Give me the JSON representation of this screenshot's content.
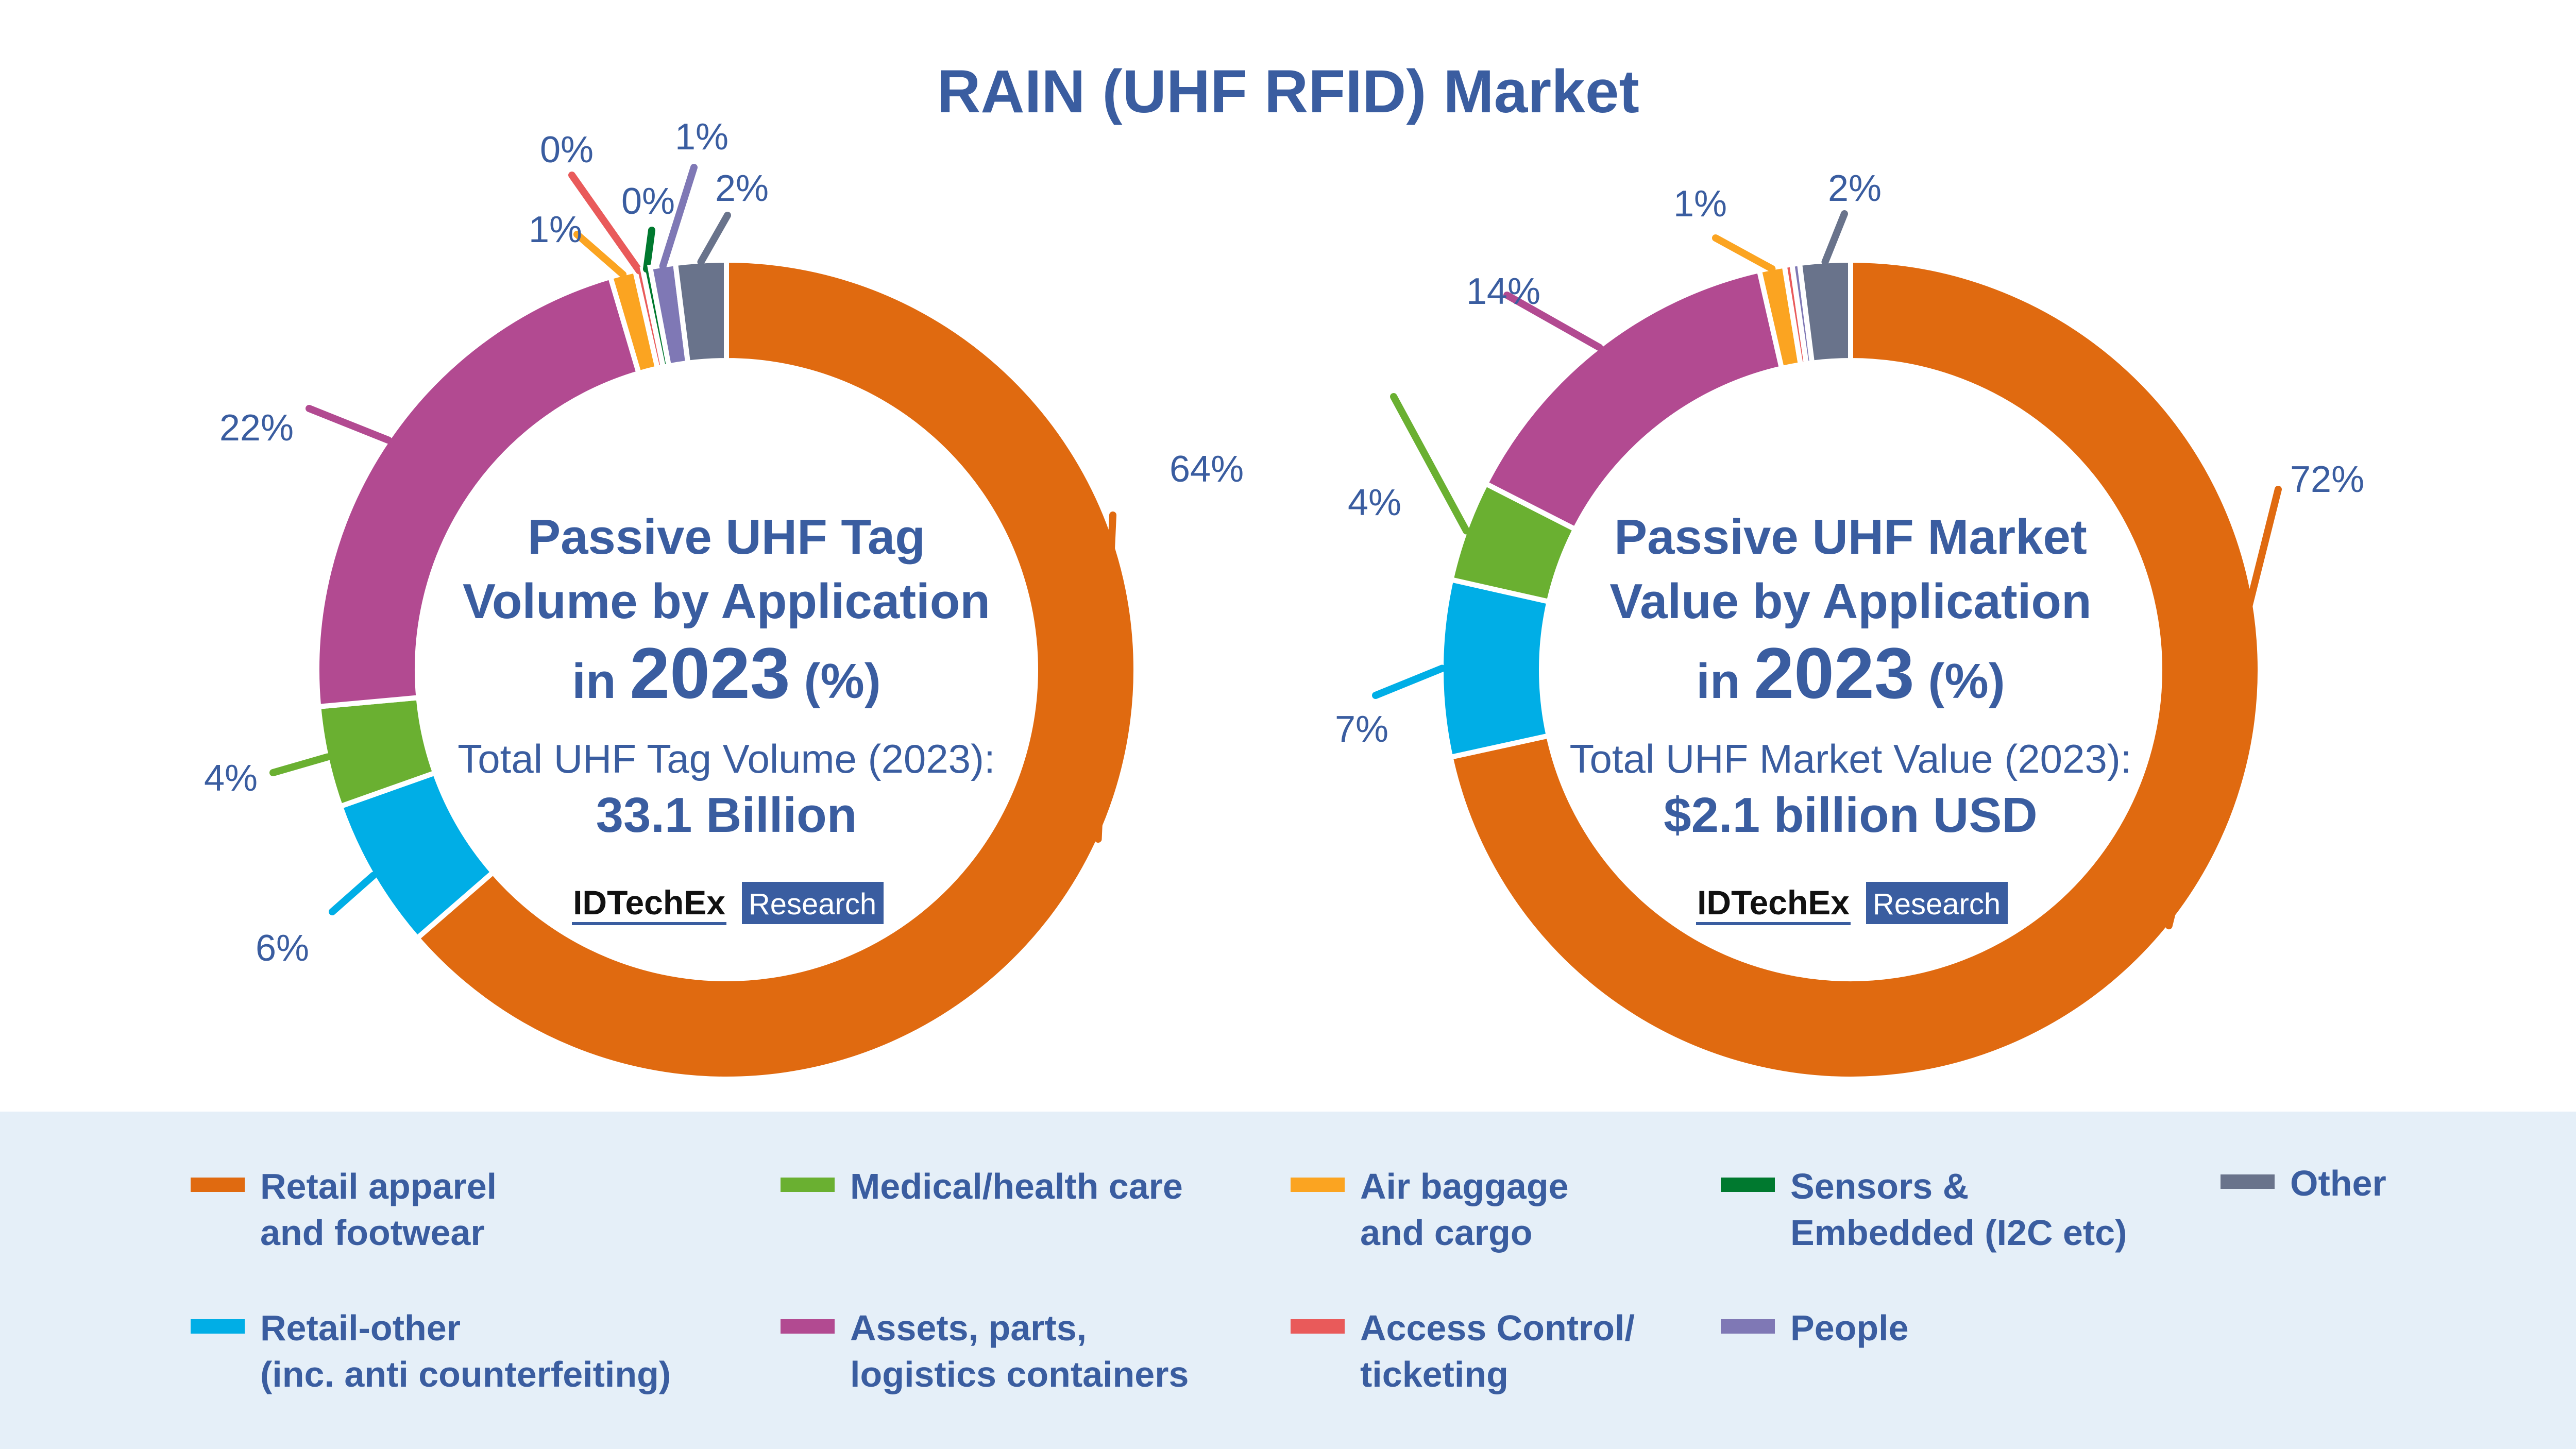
{
  "title": "RAIN (UHF RFID) Market",
  "colors": {
    "text": "#3a5da0",
    "retail_apparel": "#e06a10",
    "retail_other": "#00aee6",
    "medical": "#6ab031",
    "assets": "#b24a91",
    "air_baggage": "#fba421",
    "access_control": "#e95a5a",
    "sensors": "#00792f",
    "people": "#7f78b5",
    "other": "#69738b",
    "legend_bg": "#e5eff8",
    "logo_box": "#3a5da0"
  },
  "logo": {
    "name": "IDTechEx",
    "tag": "Research"
  },
  "chart_data": [
    {
      "type": "pie",
      "variant": "donut",
      "title_lines": [
        "Passive UHF Tag",
        "Volume by Application"
      ],
      "title_in": "in",
      "title_year": "2023",
      "title_unit": "(%)",
      "total_label": "Total UHF Tag Volume (2023):",
      "total_value": "33.1 Billion",
      "start": "12 o'clock, clockwise",
      "slices": [
        {
          "category": "Retail apparel and footwear",
          "key": "retail_apparel",
          "value": 64,
          "label": "64%"
        },
        {
          "category": "Retail-other (inc. anti counterfeiting)",
          "key": "retail_other",
          "value": 6,
          "label": "6%"
        },
        {
          "category": "Medical/health care",
          "key": "medical",
          "value": 4,
          "label": "4%"
        },
        {
          "category": "Assets, parts, logistics containers",
          "key": "assets",
          "value": 22,
          "label": "22%"
        },
        {
          "category": "Air baggage and cargo",
          "key": "air_baggage",
          "value": 1,
          "label": "1%"
        },
        {
          "category": "Access Control/ ticketing",
          "key": "access_control",
          "value": 0.3,
          "label": "0%"
        },
        {
          "category": "Sensors & Embedded (I2C etc)",
          "key": "sensors",
          "value": 0.3,
          "label": "0%"
        },
        {
          "category": "People",
          "key": "people",
          "value": 1,
          "label": "1%"
        },
        {
          "category": "Other",
          "key": "other",
          "value": 2,
          "label": "2%"
        }
      ]
    },
    {
      "type": "pie",
      "variant": "donut",
      "title_lines": [
        "Passive UHF Market",
        "Value by Application"
      ],
      "title_in": "in",
      "title_year": "2023",
      "title_unit": "(%)",
      "total_label": "Total UHF Market Value (2023):",
      "total_value": "$2.1 billion USD",
      "start": "12 o'clock, clockwise",
      "slices": [
        {
          "category": "Retail apparel and footwear",
          "key": "retail_apparel",
          "value": 72,
          "label": "72%"
        },
        {
          "category": "Retail-other (inc. anti counterfeiting)",
          "key": "retail_other",
          "value": 7,
          "label": "7%"
        },
        {
          "category": "Medical/health care",
          "key": "medical",
          "value": 4,
          "label": "4%"
        },
        {
          "category": "Assets, parts, logistics containers",
          "key": "assets",
          "value": 14,
          "label": "14%"
        },
        {
          "category": "Air baggage and cargo",
          "key": "air_baggage",
          "value": 1,
          "label": "1%"
        },
        {
          "category": "Access Control/ ticketing",
          "key": "access_control",
          "value": 0.3,
          "label": ""
        },
        {
          "category": "People",
          "key": "people",
          "value": 0.3,
          "label": ""
        },
        {
          "category": "Other",
          "key": "other",
          "value": 2,
          "label": "2%"
        }
      ]
    }
  ],
  "legend": [
    {
      "key": "retail_apparel",
      "label": "Retail apparel\nand footwear"
    },
    {
      "key": "medical",
      "label": "Medical/health care"
    },
    {
      "key": "air_baggage",
      "label": "Air baggage\nand cargo"
    },
    {
      "key": "sensors",
      "label": "Sensors &\nEmbedded (I2C etc)"
    },
    {
      "key": "other",
      "label": "Other"
    },
    {
      "key": "retail_other",
      "label": "Retail-other\n(inc. anti counterfeiting)"
    },
    {
      "key": "assets",
      "label": "Assets, parts,\nlogistics containers"
    },
    {
      "key": "access_control",
      "label": "Access Control/\nticketing"
    },
    {
      "key": "people",
      "label": "People"
    }
  ]
}
